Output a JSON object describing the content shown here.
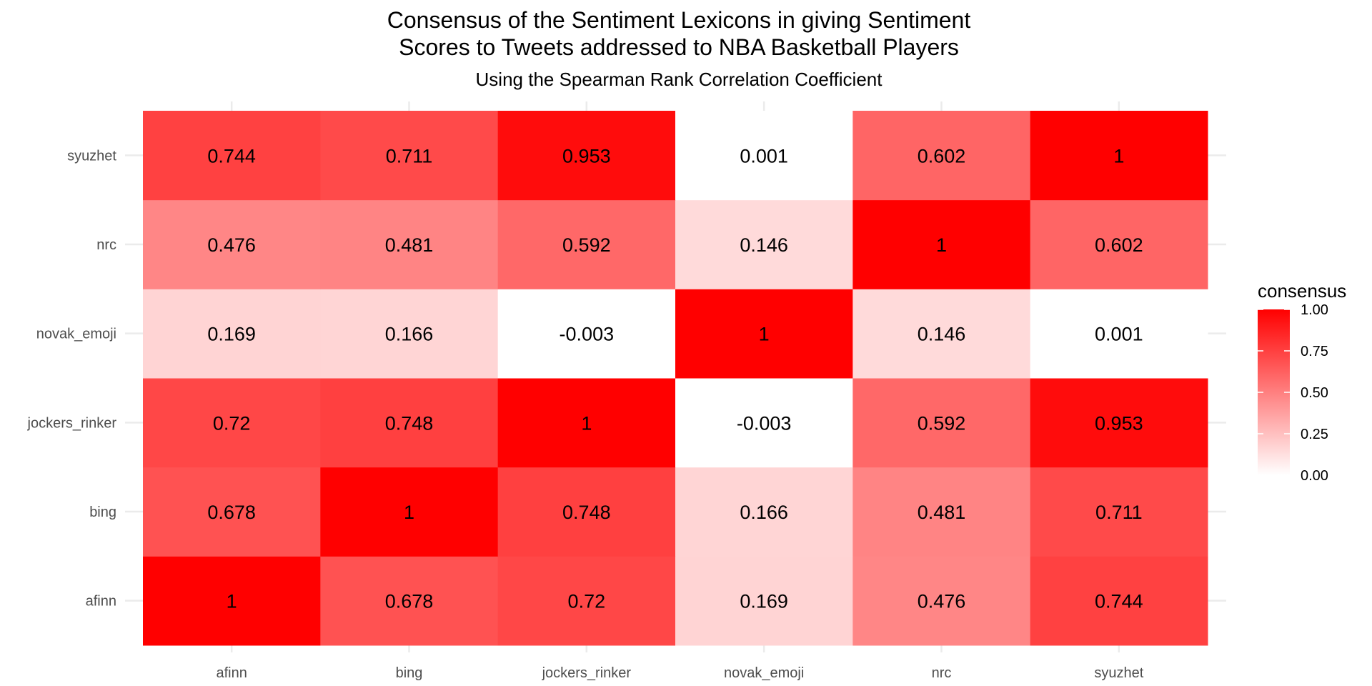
{
  "chart_data": {
    "type": "heatmap",
    "title_lines": [
      "Consensus of the Sentiment Lexicons in giving Sentiment",
      "Scores to Tweets addressed to NBA Basketball Players"
    ],
    "subtitle": "Using the Spearman Rank Correlation Coefficient",
    "xlabel": "",
    "ylabel": "",
    "x_categories": [
      "afinn",
      "bing",
      "jockers_rinker",
      "novak_emoji",
      "nrc",
      "syuzhet"
    ],
    "y_categories": [
      "afinn",
      "bing",
      "jockers_rinker",
      "novak_emoji",
      "nrc",
      "syuzhet"
    ],
    "values": [
      [
        1,
        0.678,
        0.72,
        0.169,
        0.476,
        0.744
      ],
      [
        0.678,
        1,
        0.748,
        0.166,
        0.481,
        0.711
      ],
      [
        0.72,
        0.748,
        1,
        -0.003,
        0.592,
        0.953
      ],
      [
        0.169,
        0.166,
        -0.003,
        1,
        0.146,
        0.001
      ],
      [
        0.476,
        0.481,
        0.592,
        0.146,
        1,
        0.602
      ],
      [
        0.744,
        0.711,
        0.953,
        0.001,
        0.602,
        1
      ]
    ],
    "cell_labels": [
      [
        "1",
        "0.678",
        "0.72",
        "0.169",
        "0.476",
        "0.744"
      ],
      [
        "0.678",
        "1",
        "0.748",
        "0.166",
        "0.481",
        "0.711"
      ],
      [
        "0.72",
        "0.748",
        "1",
        "-0.003",
        "0.592",
        "0.953"
      ],
      [
        "0.169",
        "0.166",
        "-0.003",
        "1",
        "0.146",
        "0.001"
      ],
      [
        "0.476",
        "0.481",
        "0.592",
        "0.146",
        "1",
        "0.602"
      ],
      [
        "0.744",
        "0.711",
        "0.953",
        "0.001",
        "0.602",
        "1"
      ]
    ],
    "legend": {
      "title": "consensus",
      "ticks": [
        1.0,
        0.75,
        0.5,
        0.25,
        0.0
      ],
      "tick_labels": [
        "1.00",
        "0.75",
        "0.50",
        "0.25",
        "0.00"
      ],
      "range": [
        0,
        1
      ],
      "placement": "right"
    },
    "color_low": "#ffffff",
    "color_high": "#ff0000",
    "grid": true,
    "grid_color": "#ebebeb",
    "background": "#ffffff"
  }
}
